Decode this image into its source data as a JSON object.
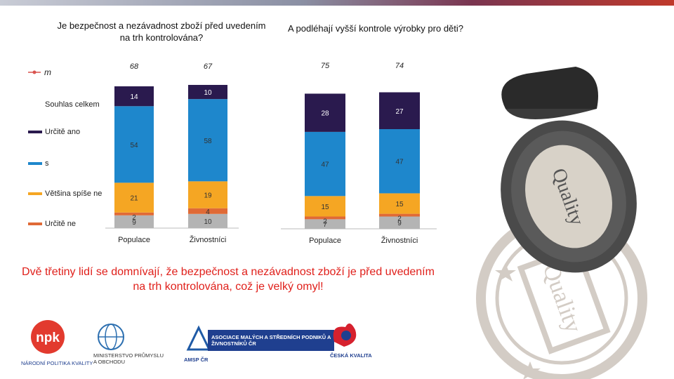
{
  "colors": {
    "urcite_ano": "#2a1a4e",
    "spise_ano": "#1e87cc",
    "spise_ne": "#f5a623",
    "urcite_ne": "#e06a36",
    "nevim": "#b4b4b4",
    "souhlas_line": "#d9534f",
    "message": "#e0201b"
  },
  "chart_data": [
    {
      "type": "bar",
      "stacked": true,
      "title": "Je bezpečnost a nezávadnost zboží před uvedením na trh kontrolována?",
      "categories": [
        "Populace",
        "Živnostníci"
      ],
      "souhlas_celkem": [
        68,
        67
      ],
      "series": [
        {
          "name": "",
          "key": "nevim",
          "values": [
            9,
            10
          ]
        },
        {
          "name": "Určitě ne",
          "key": "urcite_ne",
          "values": [
            2,
            4
          ]
        },
        {
          "name": "Většina spíše ne",
          "key": "spise_ne",
          "values": [
            21,
            19
          ]
        },
        {
          "name": "s",
          "key": "spise_ano",
          "values": [
            54,
            58
          ]
        },
        {
          "name": "Určitě ano",
          "key": "urcite_ano",
          "values": [
            14,
            10
          ]
        }
      ],
      "legend_placement": "left"
    },
    {
      "type": "bar",
      "stacked": true,
      "title": "A podléhají vyšší kontrole výrobky pro děti?",
      "categories": [
        "Populace",
        "Živnostníci"
      ],
      "souhlas_celkem": [
        75,
        74
      ],
      "series": [
        {
          "name": "",
          "key": "nevim",
          "values": [
            7,
            9
          ]
        },
        {
          "name": "Určitě ne",
          "key": "urcite_ne",
          "values": [
            2,
            2
          ]
        },
        {
          "name": "Většina spíše ne",
          "key": "spise_ne",
          "values": [
            15,
            15
          ]
        },
        {
          "name": "s",
          "key": "spise_ano",
          "values": [
            47,
            47
          ]
        },
        {
          "name": "Určitě ano",
          "key": "urcite_ano",
          "values": [
            28,
            27
          ]
        }
      ]
    }
  ],
  "legend": {
    "line_label": "m",
    "items": [
      {
        "label": "Souhlas celkem",
        "key": "souhlas_line"
      },
      {
        "label": "Určitě ano",
        "key": "urcite_ano"
      },
      {
        "label": "s",
        "key": "spise_ano"
      },
      {
        "label": "Většina spíše ne",
        "key": "spise_ne"
      },
      {
        "label": "Určitě ne",
        "key": "urcite_ne"
      }
    ]
  },
  "message": "Dvě třetiny lidí se domnívají, že bezpečnost a nezávadnost zboží je před uvedením na trh kontrolována, což je velký omyl!",
  "logos": {
    "npk_text": "NÁRODNÍ POLITIKA KVALITY",
    "mpo_text": "MINISTERSTVO PRŮMYSLU A OBCHODU",
    "amsp_text": "ASOCIACE MALÝCH A STŘEDNÍCH PODNIKŮ A ŽIVNOSTNÍKŮ ČR",
    "amsp_short": "AMSP ČR",
    "ck_text": "ČESKÁ KVALITA"
  },
  "stamp_text": "Quality"
}
